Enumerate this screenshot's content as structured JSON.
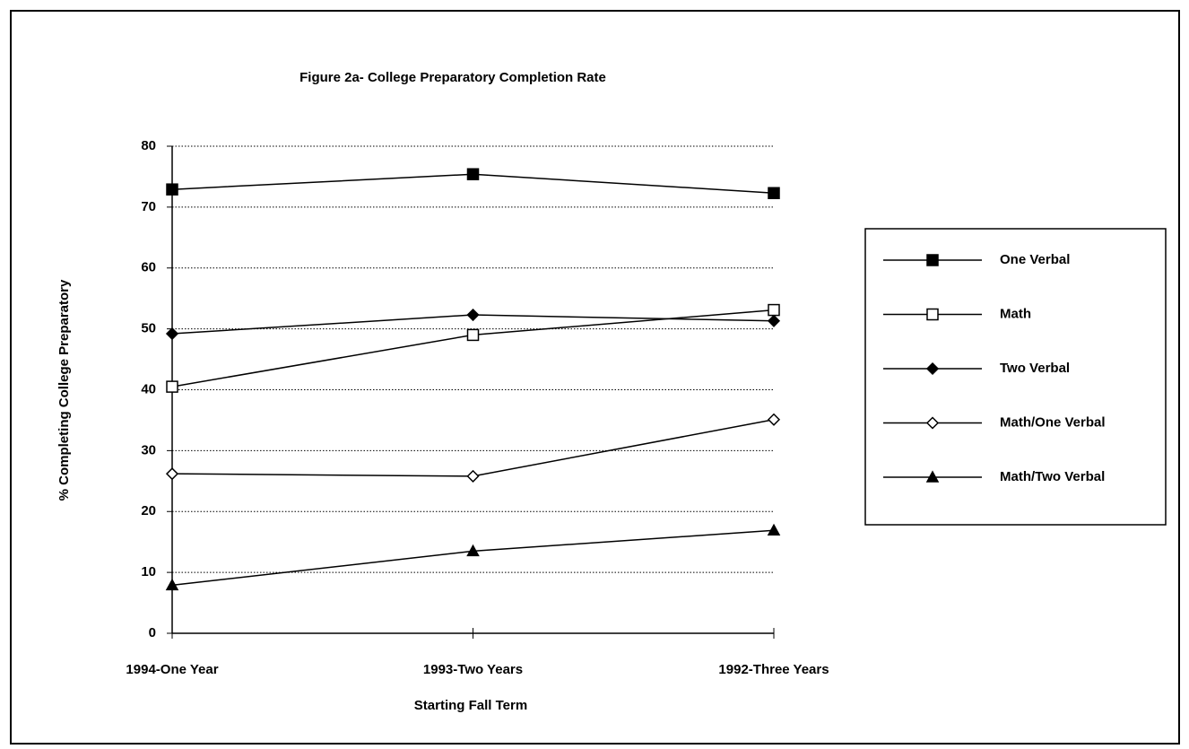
{
  "chart_data": {
    "type": "line",
    "title": "Figure 2a-  College Preparatory Completion Rate",
    "x_label": "Starting Fall Term",
    "y_label": "% Completing College Preparatory",
    "categories": [
      "1994-One Year",
      "1993-Two Years",
      "1992-Three Years"
    ],
    "series": [
      {
        "name": "One Verbal",
        "color": "#000000",
        "marker": "square",
        "filled": true,
        "values": [
          72.9,
          75.4,
          72.3
        ]
      },
      {
        "name": "Math",
        "color": "#000000",
        "marker": "square",
        "filled": false,
        "values": [
          40.5,
          49.0,
          53.1
        ]
      },
      {
        "name": "Two Verbal",
        "color": "#000000",
        "marker": "diamond",
        "filled": true,
        "values": [
          49.2,
          52.3,
          51.3
        ]
      },
      {
        "name": "Math/One Verbal",
        "color": "#000000",
        "marker": "diamond",
        "filled": false,
        "values": [
          26.2,
          25.8,
          35.1
        ]
      },
      {
        "name": "Math/Two Verbal",
        "color": "#000000",
        "marker": "triangle",
        "filled": true,
        "values": [
          7.9,
          13.5,
          16.9
        ]
      }
    ],
    "ylim": [
      0,
      80
    ],
    "yticks": [
      0,
      10,
      20,
      30,
      40,
      50,
      60,
      70,
      80
    ],
    "grid": true,
    "legend": "right"
  }
}
